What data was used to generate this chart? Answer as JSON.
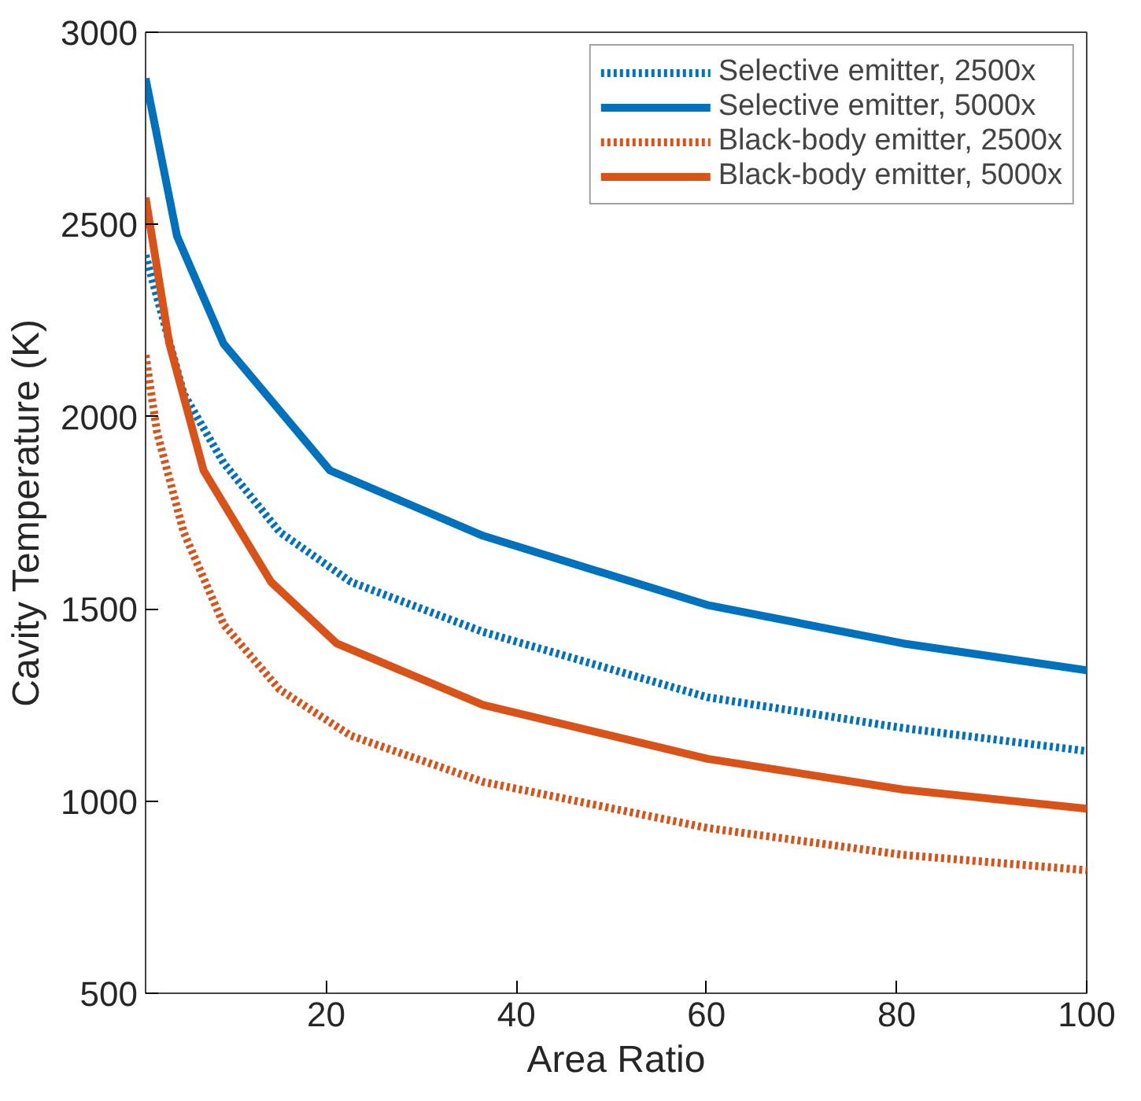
{
  "chart_data": {
    "type": "line",
    "xlabel": "Area Ratio",
    "ylabel": "Cavity Temperature (K)",
    "xlim": [
      1,
      100
    ],
    "ylim": [
      500,
      3000
    ],
    "xticks": [
      20,
      40,
      60,
      80,
      100
    ],
    "yticks": [
      500,
      1000,
      1500,
      2000,
      2500,
      3000
    ],
    "grid": false,
    "legend": "top right",
    "marker": "none",
    "series": [
      {
        "name": "Selective emitter, 2500x",
        "color": "#0072bd",
        "line_style": "dotted",
        "x": [
          1,
          5,
          9.2,
          15.1,
          22.6,
          36.5,
          60.1,
          80.7,
          100
        ],
        "values": [
          2420,
          2060,
          1880,
          1700,
          1570,
          1440,
          1270,
          1190,
          1130
        ]
      },
      {
        "name": "Selective emitter, 5000x",
        "color": "#0072bd",
        "line_style": "solid",
        "x": [
          1,
          4.3,
          9.2,
          20.4,
          36.5,
          60.1,
          80.7,
          100
        ],
        "values": [
          2880,
          2470,
          2190,
          1860,
          1690,
          1510,
          1410,
          1340
        ]
      },
      {
        "name": "Black-body emitter, 2500x",
        "color": "#d95319",
        "line_style": "dotted",
        "x": [
          1,
          2.2,
          5,
          9.2,
          15.1,
          22.6,
          36.5,
          60.1,
          80.7,
          100
        ],
        "values": [
          2160,
          1960,
          1700,
          1460,
          1290,
          1170,
          1050,
          930,
          860,
          820
        ]
      },
      {
        "name": "Black-body emitter, 5000x",
        "color": "#d95319",
        "line_style": "solid",
        "x": [
          1,
          3.5,
          7.1,
          14.2,
          21.1,
          36.5,
          60.1,
          80.7,
          100
        ],
        "values": [
          2570,
          2190,
          1860,
          1570,
          1410,
          1250,
          1110,
          1030,
          980
        ]
      }
    ]
  }
}
